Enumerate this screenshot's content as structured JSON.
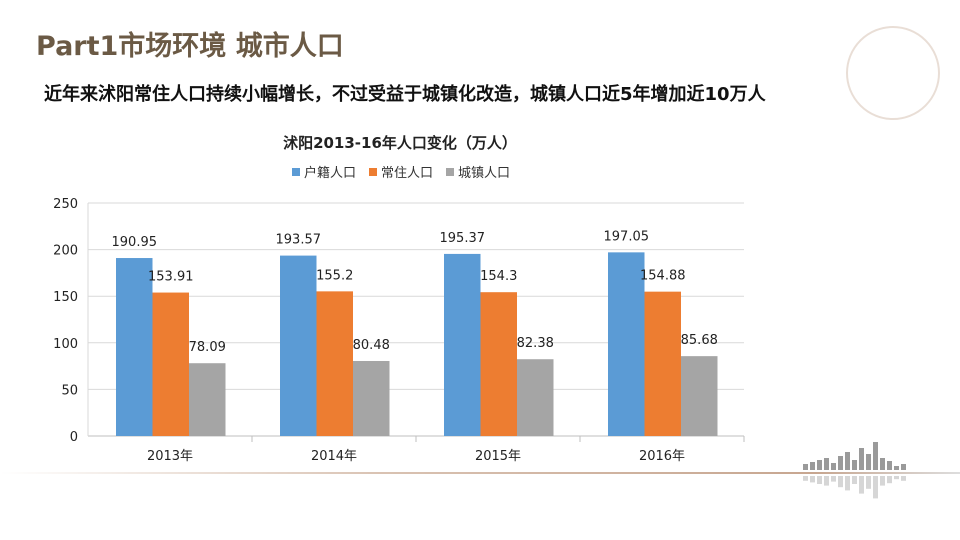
{
  "header": {
    "title": "Part1市场环境  城市人口",
    "subtitle": "近年来沭阳常住人口持续小幅增长，不过受益于城镇化改造，城镇人口近5年增加近10万人"
  },
  "chart_data": {
    "type": "bar",
    "title": "沭阳2013-16年人口变化（万人）",
    "categories": [
      "2013年",
      "2014年",
      "2015年",
      "2016年"
    ],
    "series": [
      {
        "name": "户籍人口",
        "color": "#5b9bd5",
        "values": [
          190.95,
          193.57,
          195.37,
          197.05
        ]
      },
      {
        "name": "常住人口",
        "color": "#ed7d31",
        "values": [
          153.91,
          155.2,
          154.3,
          154.88
        ]
      },
      {
        "name": "城镇人口",
        "color": "#a5a5a5",
        "values": [
          78.09,
          80.48,
          82.38,
          85.68
        ]
      }
    ],
    "ylim": [
      0,
      250
    ],
    "yticks": [
      0,
      50,
      100,
      150,
      200,
      250
    ],
    "grid": true,
    "legend": "top"
  }
}
